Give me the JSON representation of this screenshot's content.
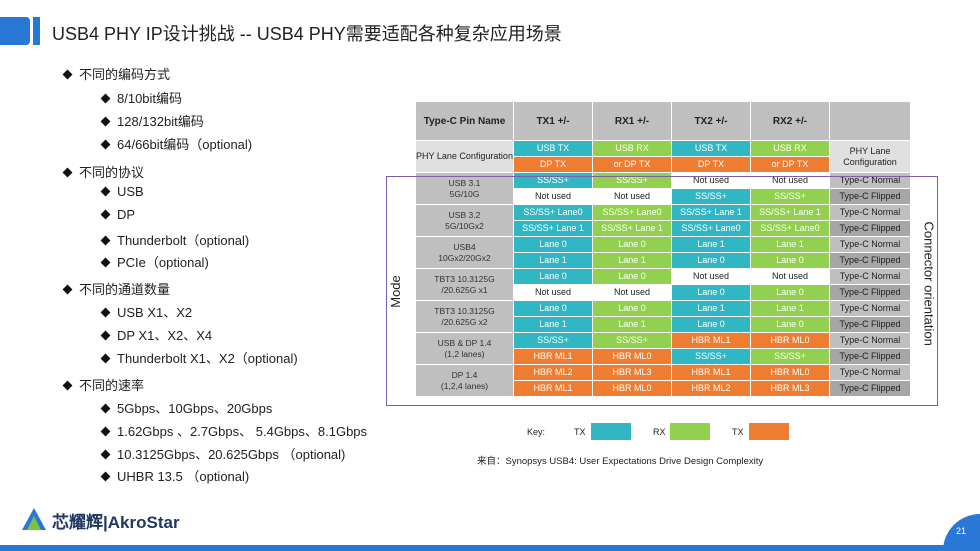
{
  "header": {
    "title": "USB4 PHY IP设计挑战 -- USB4 PHY需要适配各种复杂应用场景",
    "accent_color": "#2a78d6"
  },
  "bullets": [
    {
      "level": 1,
      "text": "不同的编码方式"
    },
    {
      "level": 2,
      "text": "8/10bit编码"
    },
    {
      "level": 2,
      "text": "128/132bit编码"
    },
    {
      "level": 2,
      "text": "64/66bit编码（optional)"
    },
    {
      "level": 1,
      "text": "不同的协议"
    },
    {
      "level": 2,
      "text": "USB"
    },
    {
      "level": 2,
      "text": "DP"
    },
    {
      "level": 2,
      "text": "Thunderbolt（optional)"
    },
    {
      "level": 2,
      "text": "PCIe（optional)"
    },
    {
      "level": 1,
      "text": "不同的通道数量"
    },
    {
      "level": 2,
      "text": "USB X1、X2"
    },
    {
      "level": 2,
      "text": "DP X1、X2、X4"
    },
    {
      "level": 2,
      "text": "Thunderbolt X1、X2（optional)"
    },
    {
      "level": 1,
      "text": "不同的速率"
    },
    {
      "level": 2,
      "text": "5Gbps、10Gbps、20Gbps"
    },
    {
      "level": 2,
      "text": "1.62Gbps 、2.7Gbps、 5.4Gbps、8.1Gbps"
    },
    {
      "level": 2,
      "text": "10.3125Gbps、20.625Gbps （optional)"
    },
    {
      "level": 2,
      "text": "UHBR 13.5 （optional)"
    }
  ],
  "table": {
    "header": [
      "Type-C Pin Name",
      "TX1 +/-",
      "RX1 +/-",
      "TX2 +/-",
      "RX2 +/-",
      ""
    ],
    "config_label": "PHY Lane Configuration",
    "config_row1": [
      "USB TX",
      "USB RX",
      "USB TX",
      "USB RX"
    ],
    "config_row2": [
      "DP TX",
      "or DP TX",
      "DP TX",
      "or DP TX"
    ],
    "config_col_label": "PHY Lane Configuration",
    "groups": [
      {
        "label": "USB 3.1\n5G/10G",
        "rows": [
          {
            "cells": [
              "SS/SS+",
              "SS/SS+",
              "Not used",
              "Not used"
            ],
            "orient": "Type-C Normal"
          },
          {
            "cells": [
              "Not used",
              "Not used",
              "SS/SS+",
              "SS/SS+"
            ],
            "orient": "Type-C Flipped"
          }
        ]
      },
      {
        "label": "USB 3.2\n5G/10Gx2",
        "rows": [
          {
            "cells": [
              "SS/SS+ Lane0",
              "SS/SS+ Lane0",
              "SS/SS+ Lane 1",
              "SS/SS+ Lane 1"
            ],
            "orient": "Type-C Normal"
          },
          {
            "cells": [
              "SS/SS+ Lane 1",
              "SS/SS+ Lane 1",
              "SS/SS+ Lane0",
              "SS/SS+ Lane0"
            ],
            "orient": "Type-C Flipped"
          }
        ]
      },
      {
        "label": "USB4\n10Gx2/20Gx2",
        "rows": [
          {
            "cells": [
              "Lane 0",
              "Lane 0",
              "Lane 1",
              "Lane 1"
            ],
            "orient": "Type-C Normal"
          },
          {
            "cells": [
              "Lane 1",
              "Lane 1",
              "Lane 0",
              "Lane 0"
            ],
            "orient": "Type-C Flipped"
          }
        ]
      },
      {
        "label": "TBT3 10.3125G\n/20.625G x1",
        "rows": [
          {
            "cells": [
              "Lane 0",
              "Lane 0",
              "Not used",
              "Not used"
            ],
            "orient": "Type-C Normal"
          },
          {
            "cells": [
              "Not used",
              "Not used",
              "Lane 0",
              "Lane 0"
            ],
            "orient": "Type-C Flipped"
          }
        ]
      },
      {
        "label": "TBT3 10.3125G\n/20.625G x2",
        "rows": [
          {
            "cells": [
              "Lane 0",
              "Lane 0",
              "Lane 1",
              "Lane 1"
            ],
            "orient": "Type-C Normal"
          },
          {
            "cells": [
              "Lane 1",
              "Lane 1",
              "Lane 0",
              "Lane 0"
            ],
            "orient": "Type-C Flipped"
          }
        ]
      },
      {
        "label": "USB & DP 1.4\n(1,2 lanes)",
        "rows": [
          {
            "cells": [
              "SS/SS+",
              "SS/SS+",
              "HBR ML1",
              "HBR ML0"
            ],
            "orient": "Type-C Normal"
          },
          {
            "cells": [
              "HBR ML1",
              "HBR ML0",
              "SS/SS+",
              "SS/SS+"
            ],
            "orient": "Type-C Flipped"
          }
        ]
      },
      {
        "label": "DP 1.4\n(1,2,4 lanes)",
        "rows": [
          {
            "cells": [
              "HBR ML2",
              "HBR ML3",
              "HBR ML1",
              "HBR ML0"
            ],
            "orient": "Type-C Normal"
          },
          {
            "cells": [
              "HBR ML1",
              "HBR ML0",
              "HBR ML2",
              "HBR ML3"
            ],
            "orient": "Type-C Flipped"
          }
        ]
      }
    ]
  },
  "mode_label": "Mode",
  "connector_label": "Connector orientation",
  "key": {
    "label": "Key:",
    "tx": "TX",
    "rx": "RX",
    "tx2": "TX"
  },
  "source": "来自：Synopsys USB4: User Expectations Drive Design Complexity",
  "footer": {
    "logo_text": "芯耀辉|AkroStar",
    "page_number": "21"
  },
  "colors": {
    "tx": "#31b6c4",
    "rx": "#92d050",
    "dp": "#ee7d31",
    "brand": "#2a78d6"
  }
}
